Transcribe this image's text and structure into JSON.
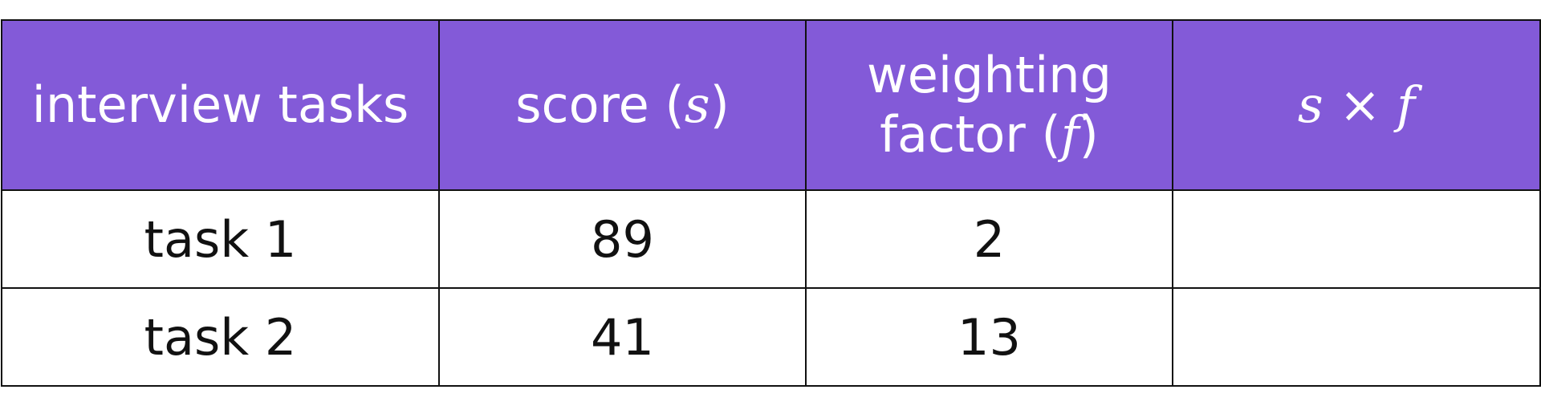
{
  "table": {
    "header": [
      [
        {
          "text": "interview tasks"
        }
      ],
      [
        {
          "text": "score ("
        },
        {
          "math": "s"
        },
        {
          "text": ")"
        }
      ],
      [
        {
          "text": "weighting factor ("
        },
        {
          "math": "f"
        },
        {
          "text": ")"
        }
      ],
      [
        {
          "math": "s"
        },
        {
          "text": " × "
        },
        {
          "math": "f"
        }
      ]
    ],
    "rows": [
      [
        "task 1",
        89,
        2
      ],
      [
        "task 2",
        41,
        13
      ]
    ]
  }
}
